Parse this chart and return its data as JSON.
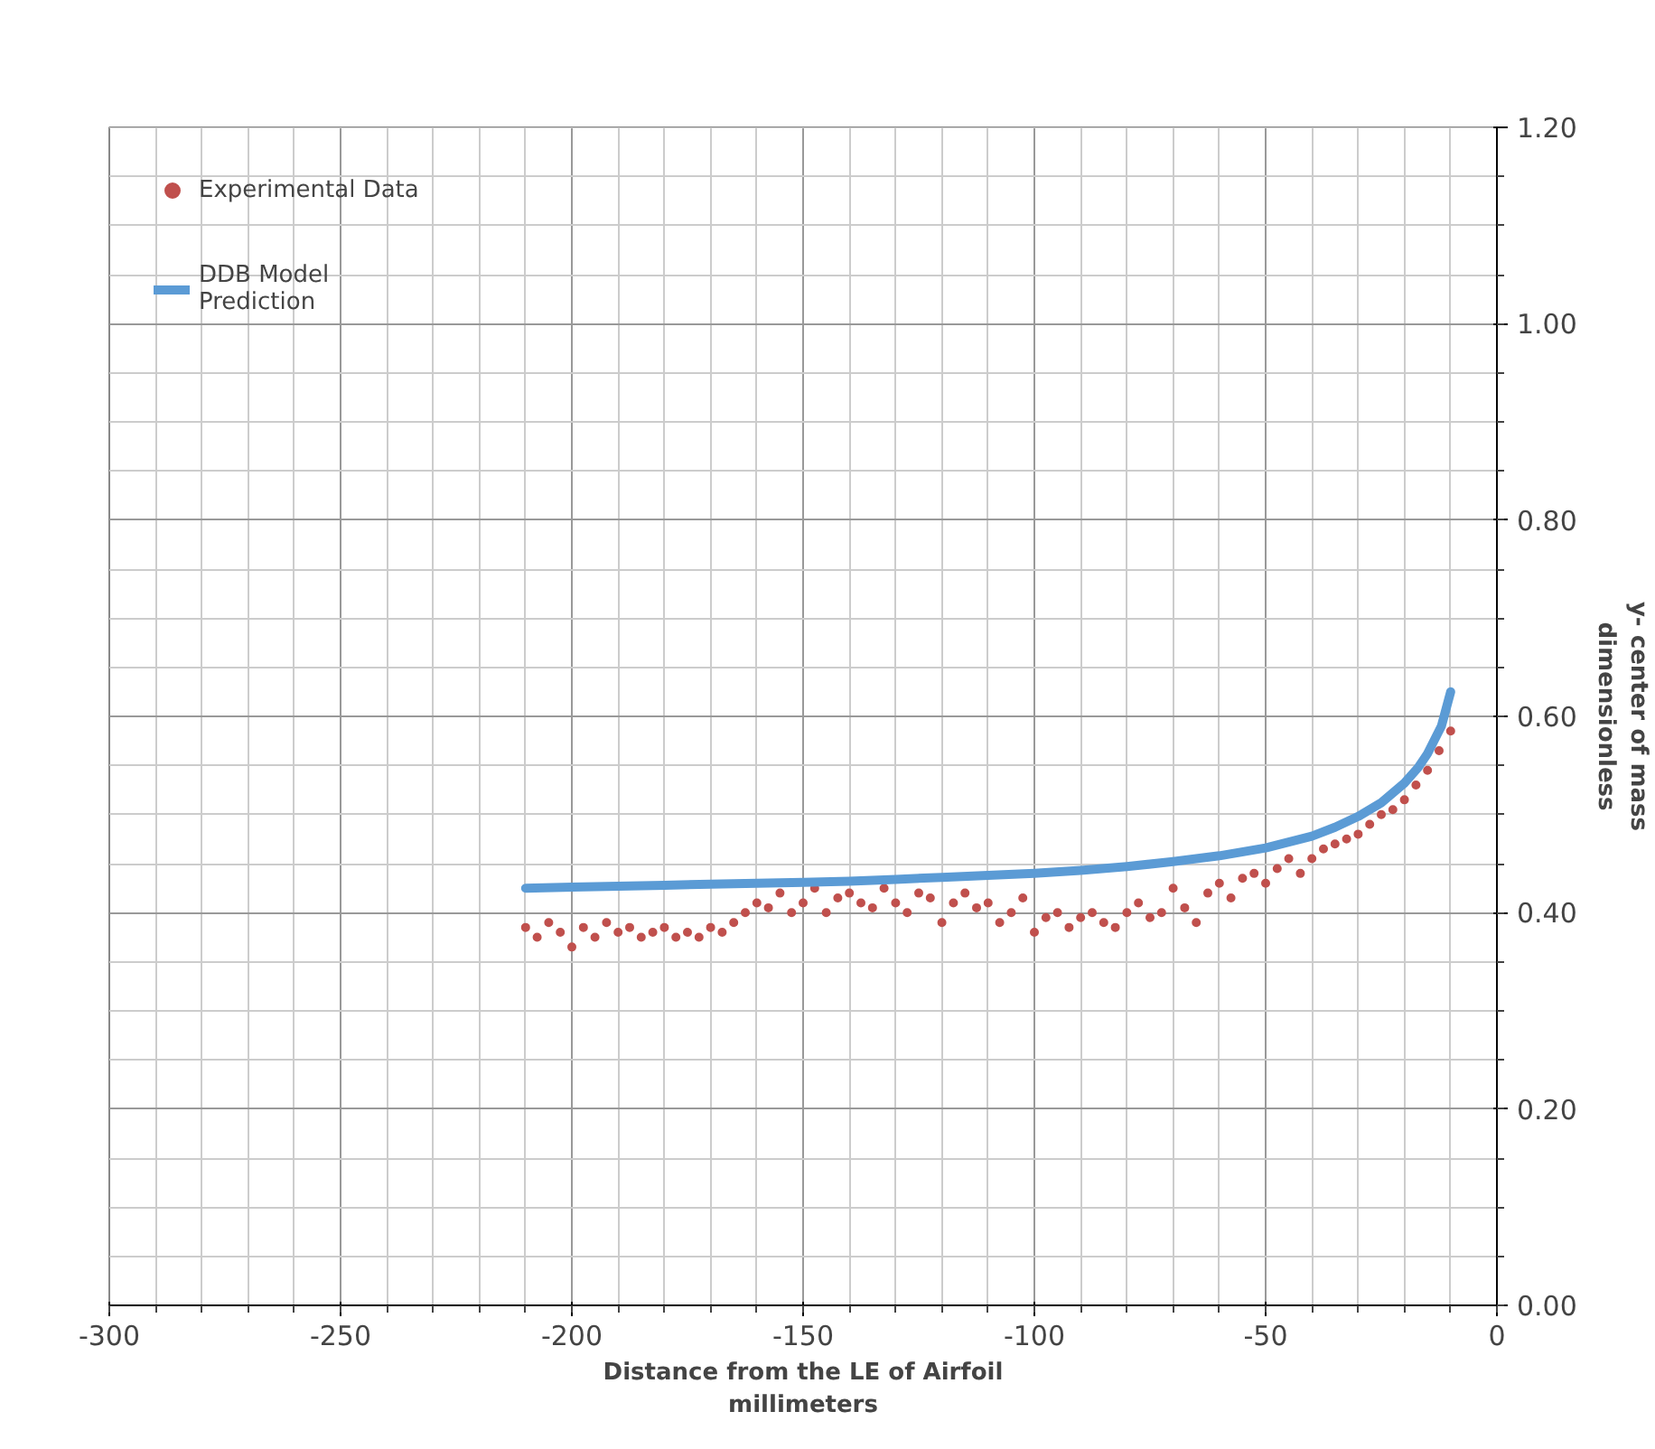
{
  "chart_data": {
    "type": "scatter",
    "xlabel": "Distance from the LE of Airfoil\nmillimeters",
    "ylabel": "y- center of mass\ndimensionless",
    "xlim": [
      -300,
      0
    ],
    "xticks": [
      -300,
      -250,
      -200,
      -150,
      -100,
      -50,
      0
    ],
    "ylim": [
      0,
      1.2
    ],
    "yticks": [
      {
        "value": 0,
        "label": "0.00"
      },
      {
        "value": 0.2,
        "label": "0.20"
      },
      {
        "value": 0.4,
        "label": "0.40"
      },
      {
        "value": 0.6,
        "label": "0.60"
      },
      {
        "value": 0.8,
        "label": "0.80"
      },
      {
        "value": 1.0,
        "label": "1.00"
      },
      {
        "value": 1.2,
        "label": "1.20"
      }
    ],
    "grid": true,
    "legend": "top left",
    "series": [
      {
        "name": "Experimental Data",
        "marker": "circle",
        "color": "#c0504d",
        "x": [
          -210,
          -207.5,
          -205,
          -202.5,
          -200,
          -197.5,
          -195,
          -192.5,
          -190,
          -187.5,
          -185,
          -182.5,
          -180,
          -177.5,
          -175,
          -172.5,
          -170,
          -167.5,
          -165,
          -162.5,
          -160,
          -157.5,
          -155,
          -152.5,
          -150,
          -147.5,
          -145,
          -142.5,
          -140,
          -137.5,
          -135,
          -132.5,
          -130,
          -127.5,
          -125,
          -122.5,
          -120,
          -117.5,
          -115,
          -112.5,
          -110,
          -107.5,
          -105,
          -102.5,
          -100,
          -97.5,
          -95,
          -92.5,
          -90,
          -87.5,
          -85,
          -82.5,
          -80,
          -77.5,
          -75,
          -72.5,
          -70,
          -67.5,
          -65,
          -62.5,
          -60,
          -57.5,
          -55,
          -52.5,
          -50,
          -47.5,
          -45,
          -42.5,
          -40,
          -37.5,
          -35,
          -32.5,
          -30,
          -27.5,
          -25,
          -22.5,
          -20,
          -17.5,
          -15,
          -12.5,
          -10
        ],
        "values": [
          0.385,
          0.375,
          0.39,
          0.38,
          0.365,
          0.385,
          0.375,
          0.39,
          0.38,
          0.385,
          0.375,
          0.38,
          0.385,
          0.375,
          0.38,
          0.375,
          0.385,
          0.38,
          0.39,
          0.4,
          0.41,
          0.405,
          0.42,
          0.4,
          0.41,
          0.425,
          0.4,
          0.415,
          0.42,
          0.41,
          0.405,
          0.425,
          0.41,
          0.4,
          0.42,
          0.415,
          0.39,
          0.41,
          0.42,
          0.405,
          0.41,
          0.39,
          0.4,
          0.415,
          0.38,
          0.395,
          0.4,
          0.385,
          0.395,
          0.4,
          0.39,
          0.385,
          0.4,
          0.41,
          0.395,
          0.4,
          0.425,
          0.405,
          0.39,
          0.42,
          0.43,
          0.415,
          0.435,
          0.44,
          0.43,
          0.445,
          0.455,
          0.44,
          0.455,
          0.465,
          0.47,
          0.475,
          0.48,
          0.49,
          0.5,
          0.505,
          0.515,
          0.53,
          0.545,
          0.565,
          0.585
        ]
      },
      {
        "name": "DDB Model\nPrediction",
        "type": "line",
        "marker": "none",
        "line_style": "solid",
        "color": "#5b9bd5",
        "x": [
          -210,
          -200,
          -190,
          -180,
          -170,
          -160,
          -150,
          -140,
          -130,
          -120,
          -110,
          -100,
          -90,
          -80,
          -70,
          -60,
          -50,
          -40,
          -35,
          -30,
          -25,
          -20,
          -17,
          -15,
          -12,
          -10
        ],
        "values": [
          0.425,
          0.426,
          0.427,
          0.428,
          0.429,
          0.43,
          0.431,
          0.432,
          0.434,
          0.436,
          0.438,
          0.44,
          0.443,
          0.447,
          0.452,
          0.458,
          0.466,
          0.478,
          0.487,
          0.498,
          0.512,
          0.532,
          0.548,
          0.562,
          0.59,
          0.625
        ]
      }
    ]
  }
}
